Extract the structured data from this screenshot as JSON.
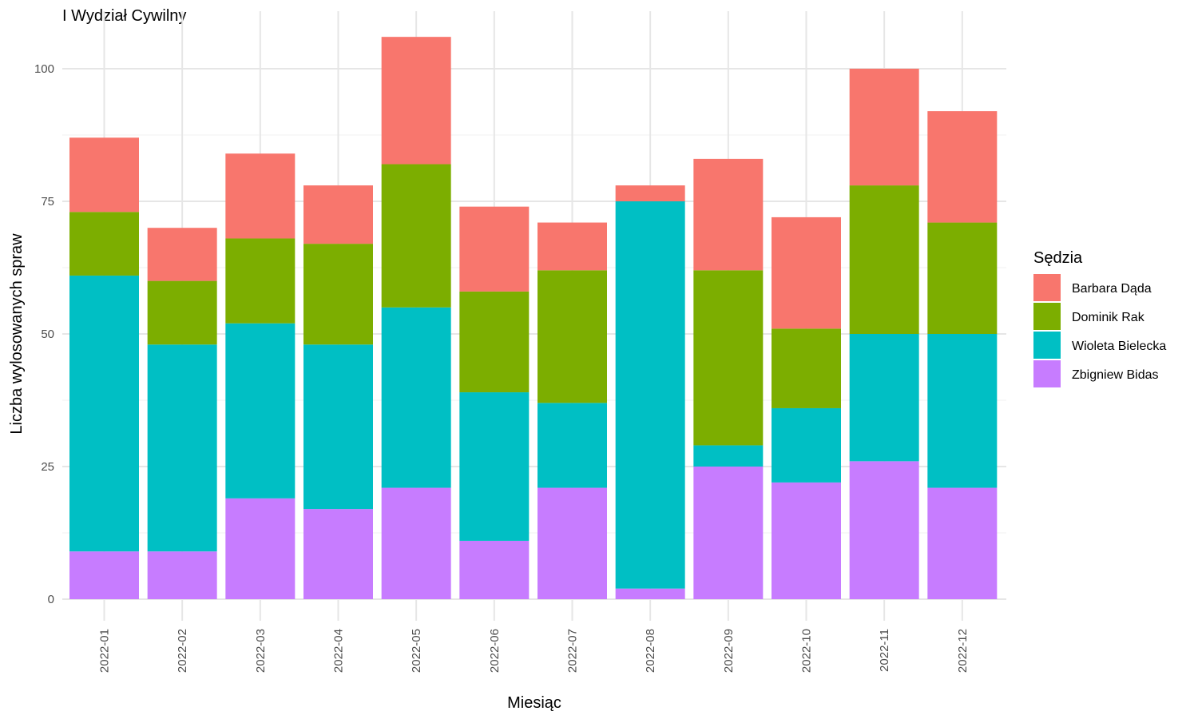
{
  "chart_data": {
    "type": "bar",
    "stacked": true,
    "title": "I Wydział Cywilny",
    "xlabel": "Miesiąc",
    "ylabel": "Liczba wylosowanych spraw",
    "ylim": [
      0,
      110
    ],
    "yticks": [
      0,
      25,
      50,
      75,
      100
    ],
    "grid": true,
    "legend_title": "Sędzia",
    "legend_position": "right",
    "categories": [
      "2022-01",
      "2022-02",
      "2022-03",
      "2022-04",
      "2022-05",
      "2022-06",
      "2022-07",
      "2022-08",
      "2022-09",
      "2022-10",
      "2022-11",
      "2022-12"
    ],
    "series": [
      {
        "name": "Zbigniew Bidas",
        "color": "#C77CFF",
        "values": [
          9,
          9,
          19,
          17,
          21,
          11,
          21,
          2,
          25,
          22,
          26,
          21
        ]
      },
      {
        "name": "Wioleta Bielecka",
        "color": "#00BFC4",
        "values": [
          52,
          39,
          33,
          31,
          34,
          28,
          16,
          73,
          4,
          14,
          24,
          29
        ]
      },
      {
        "name": "Dominik Rak",
        "color": "#7CAE00",
        "values": [
          12,
          12,
          16,
          19,
          27,
          19,
          25,
          0,
          33,
          15,
          28,
          21
        ]
      },
      {
        "name": "Barbara Dąda",
        "color": "#F8766D",
        "values": [
          14,
          10,
          16,
          11,
          24,
          16,
          9,
          3,
          21,
          21,
          22,
          21
        ]
      }
    ],
    "legend_order": [
      "Barbara Dąda",
      "Dominik Rak",
      "Wioleta Bielecka",
      "Zbigniew Bidas"
    ]
  }
}
